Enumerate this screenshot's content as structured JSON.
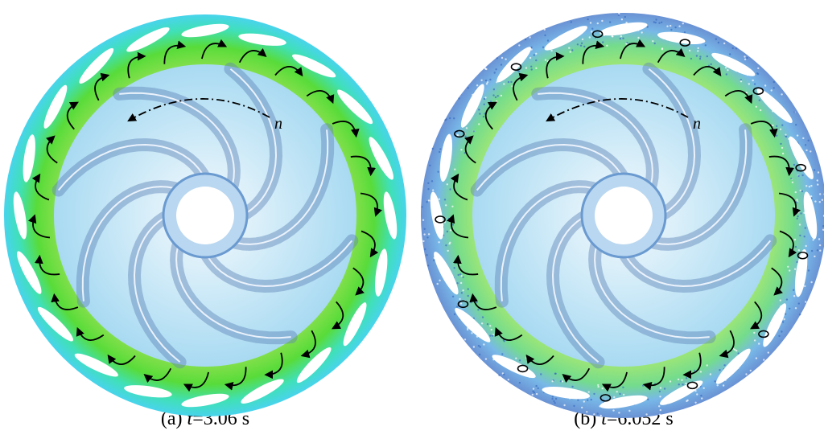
{
  "panels": [
    {
      "label": "(a)",
      "variable": "t",
      "value": "=3.06 s",
      "rotation_label": "n"
    },
    {
      "label": "(b)",
      "variable": "t",
      "value": "=6.052 s",
      "rotation_label": "n"
    }
  ]
}
